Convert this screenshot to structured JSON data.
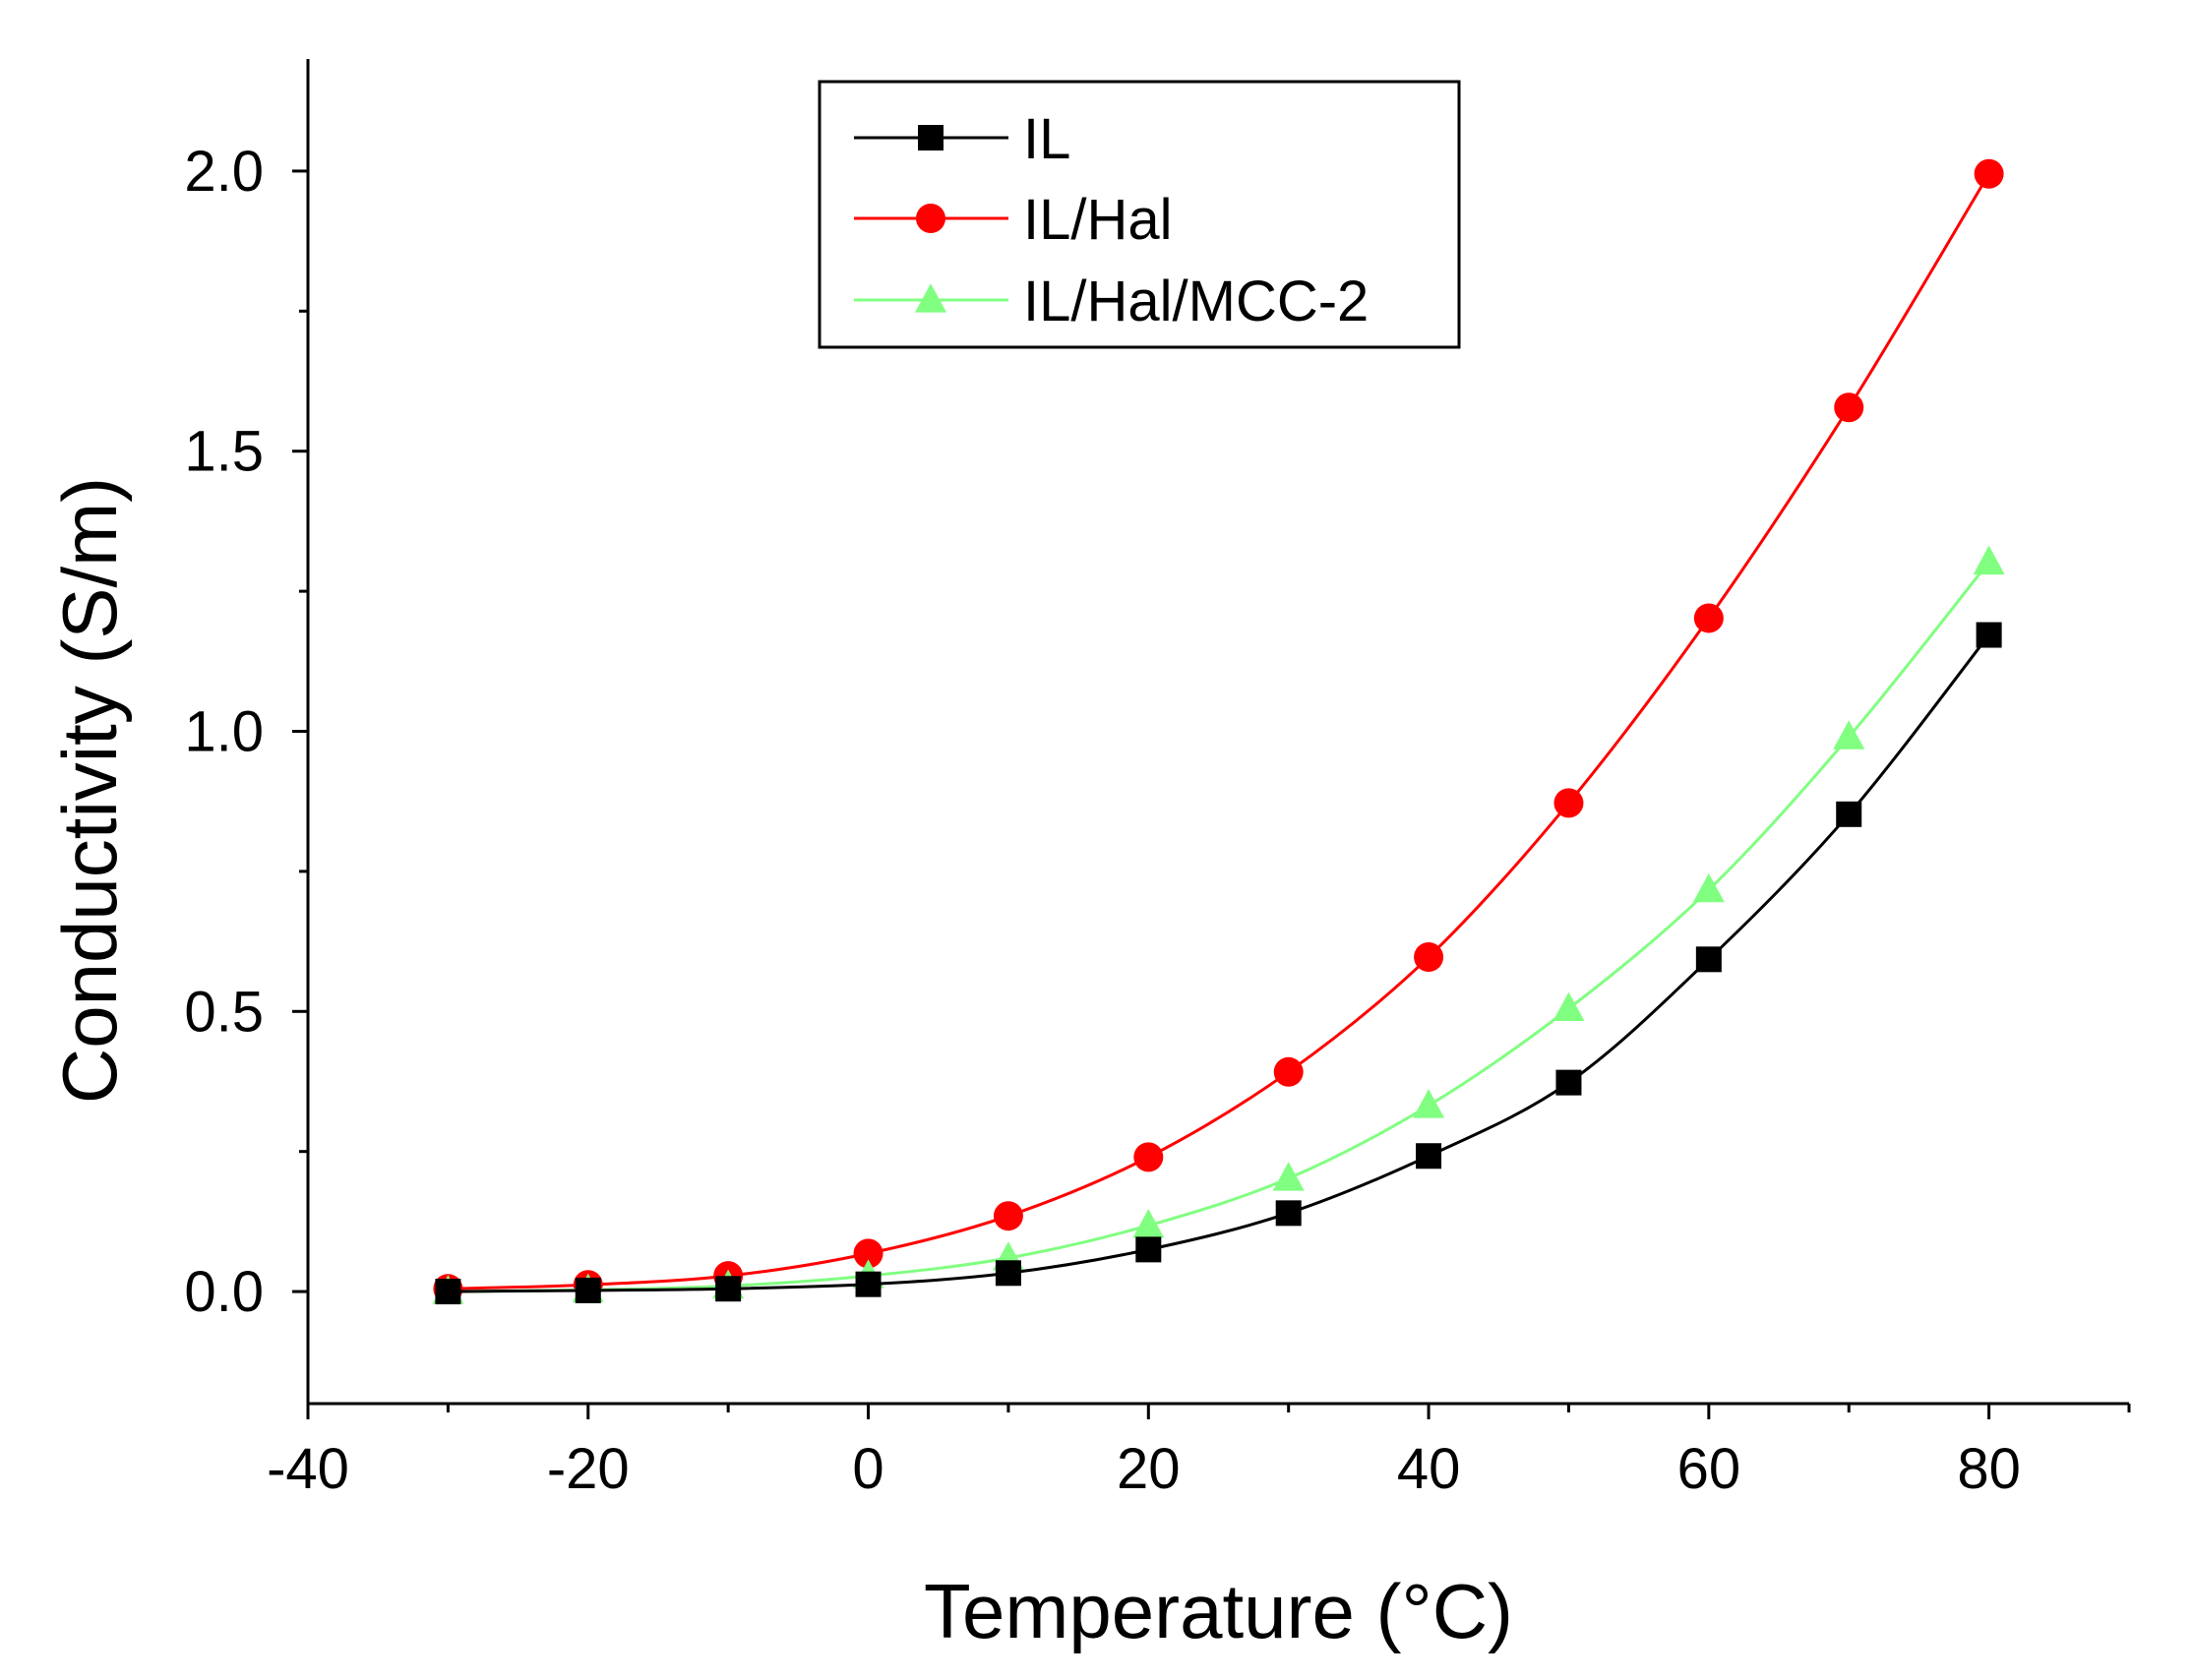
{
  "chart_data": {
    "type": "line",
    "title": "",
    "xlabel": "Temperature (°C)",
    "ylabel": "Conductivity (S/m)",
    "xlim": [
      -40,
      90
    ],
    "ylim": [
      -0.2,
      2.2
    ],
    "xticks": [
      -40,
      -20,
      0,
      20,
      40,
      60,
      80
    ],
    "xtick_labels": [
      "-40",
      "-20",
      "0",
      "20",
      "40",
      "60",
      "80"
    ],
    "yticks": [
      0.0,
      0.5,
      1.0,
      1.5,
      2.0
    ],
    "ytick_labels": [
      "0.0",
      "0.5",
      "1.0",
      "1.5",
      "2.0"
    ],
    "grid": false,
    "legend_position": "top-center",
    "x": [
      -30,
      -20,
      -10,
      0,
      10,
      20,
      30,
      40,
      50,
      60,
      70,
      80
    ],
    "series": [
      {
        "name": "IL",
        "color": "#000000",
        "marker": "square",
        "values": [
          0.0,
          0.002,
          0.005,
          0.013,
          0.033,
          0.075,
          0.14,
          0.242,
          0.373,
          0.593,
          0.852,
          1.172
        ]
      },
      {
        "name": "IL/Hal",
        "color": "#ff0000",
        "marker": "circle",
        "values": [
          0.005,
          0.012,
          0.028,
          0.068,
          0.135,
          0.24,
          0.392,
          0.597,
          0.872,
          1.202,
          1.578,
          1.995
        ]
      },
      {
        "name": "IL/Hal/MCC-2",
        "color": "#80ff80",
        "marker": "triangle",
        "values": [
          0.0,
          0.003,
          0.01,
          0.028,
          0.06,
          0.118,
          0.202,
          0.332,
          0.505,
          0.717,
          0.99,
          1.302
        ]
      }
    ]
  }
}
